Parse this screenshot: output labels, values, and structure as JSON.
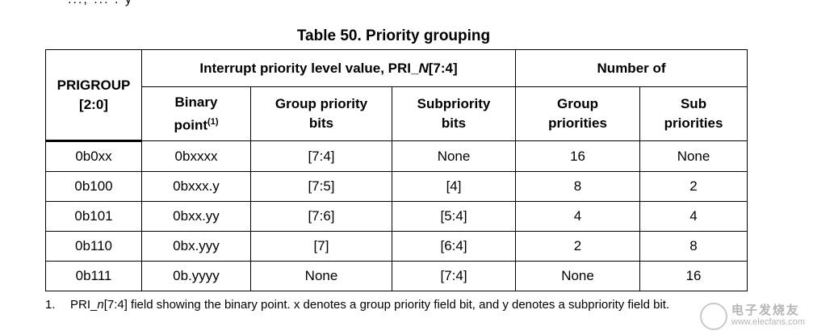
{
  "top_fragment": "..., ... . y",
  "title": "Table 50. Priority grouping",
  "headers": {
    "prigroup": "PRIGROUP\n[2:0]",
    "interrupt_group": "Interrupt priority level value, PRI_N[7:4]",
    "interrupt_group_pre": "Interrupt priority level value, PRI_",
    "interrupt_group_italic": "N",
    "interrupt_group_post": "[7:4]",
    "number_of": "Number of",
    "binary_point": "Binary point",
    "binary_point_line1": "Binary",
    "binary_point_line2": "point",
    "binary_point_sup": "(1)",
    "group_priority_bits": "Group priority bits",
    "group_priority_bits_line1": "Group priority",
    "group_priority_bits_line2": "bits",
    "subpriority_bits": "Subpriority bits",
    "subpriority_bits_line1": "Subpriority",
    "subpriority_bits_line2": "bits",
    "group_priorities": "Group priorities",
    "group_priorities_line1": "Group",
    "group_priorities_line2": "priorities",
    "sub_priorities": "Sub priorities",
    "sub_priorities_line1": "Sub",
    "sub_priorities_line2": "priorities"
  },
  "rows": [
    [
      "0b0xx",
      "0bxxxx",
      "[7:4]",
      "None",
      "16",
      "None"
    ],
    [
      "0b100",
      "0bxxx.y",
      "[7:5]",
      "[4]",
      "8",
      "2"
    ],
    [
      "0b101",
      "0bxx.yy",
      "[7:6]",
      "[5:4]",
      "4",
      "4"
    ],
    [
      "0b110",
      "0bx.yyy",
      "[7]",
      "[6:4]",
      "2",
      "8"
    ],
    [
      "0b111",
      "0b.yyyy",
      "None",
      "[7:4]",
      "None",
      "16"
    ]
  ],
  "footnote": {
    "number": "1.",
    "text_pre": "PRI_",
    "text_italic": "n",
    "text_post": "[7:4] field showing the binary point. x denotes a group priority field bit, and y denotes a subpriority field bit."
  },
  "watermark": {
    "chinese": "电子发烧友",
    "url": "www.elecfans.com"
  }
}
